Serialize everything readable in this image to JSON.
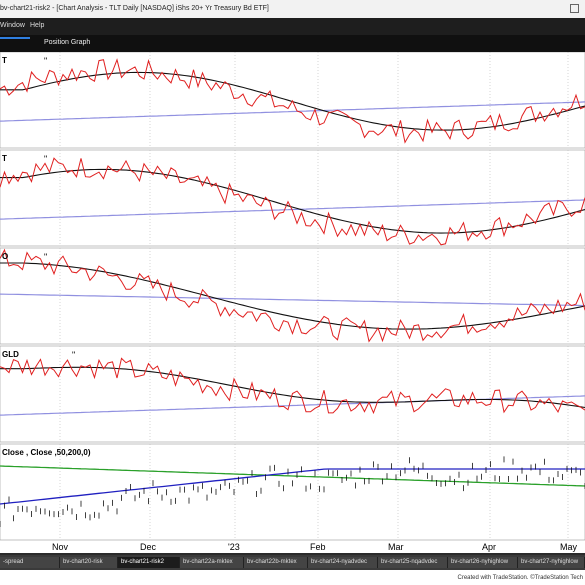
{
  "window": {
    "title": "bv-chart21-risk2 - [Chart Analysis - TLT Daily [NASDAQ] iShs 20+ Yr Treasury Bd ETF]"
  },
  "menu": {
    "items": [
      "Window",
      "Help"
    ]
  },
  "toolbar": {
    "item": "Position Graph"
  },
  "panes": [
    {
      "label": "T",
      "marker": "\""
    },
    {
      "label": "T",
      "marker": "\""
    },
    {
      "label": "O",
      "marker": "\""
    },
    {
      "label": "GLD",
      "marker": "\""
    },
    {
      "label": "Close , Close ,50,200,0)",
      "marker": ""
    }
  ],
  "xaxis": {
    "labels": [
      "Nov",
      "Dec",
      "'23",
      "Feb",
      "Mar",
      "Apr",
      "May"
    ]
  },
  "tabs": [
    "-spread",
    "bv-chart20-risk",
    "bv-chart21-risk2",
    "bv-chart22a-mktex",
    "bv-chart22b-mktex",
    "bv-chart24-nyadvdec",
    "bv-chart25-nqadvdec",
    "bv-chart26-nyhighlow",
    "bv-chart27-nyhighlow"
  ],
  "active_tab": "bv-chart21-risk2",
  "footer": {
    "text": "Created with TradeStation. ©TradeStation Tech"
  },
  "colors": {
    "price": "#e02020",
    "short_ma": "#111111",
    "long_ma": "#9090e0",
    "green_ma": "#2aa02a",
    "blue_ma": "#2020c0"
  }
}
